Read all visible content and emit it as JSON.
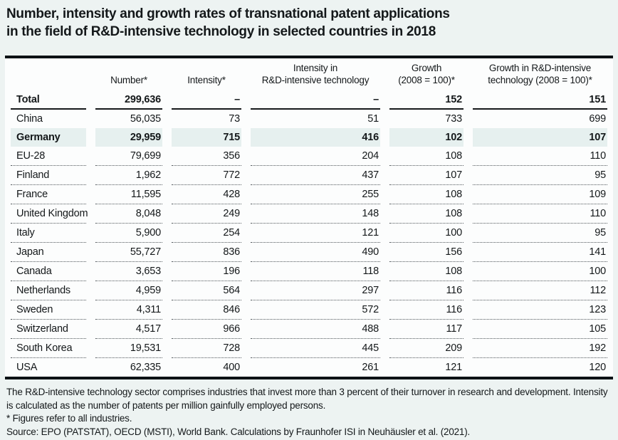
{
  "page": {
    "title_line1": "Number, intensity and growth rates of transnational patent applications",
    "title_line2": "in the field of R&D-intensive technology in selected countries in 2018"
  },
  "table": {
    "header": {
      "number": "Number*",
      "intensity": "Intensity*",
      "intensity_rd_line1": "Intensity in",
      "intensity_rd_line2": "R&D-intensive technology",
      "growth_line1": "Growth",
      "growth_line2": "(2008 = 100)*",
      "growth_rd_line1": "Growth in R&D-intensive",
      "growth_rd_line2": "technology (2008 = 100)*"
    }
  },
  "chart_data": {
    "type": "table",
    "title": "Number, intensity and growth rates of transnational patent applications in the field of R&D-intensive technology in selected countries in 2018",
    "columns": [
      "",
      "Number*",
      "Intensity*",
      "Intensity in R&D-intensive technology",
      "Growth (2008 = 100)*",
      "Growth in R&D-intensive technology (2008 = 100)*"
    ],
    "rows": [
      {
        "name": "Total",
        "values": [
          "299,636",
          "–",
          "–",
          "152",
          "151"
        ]
      },
      {
        "name": "China",
        "values": [
          "56,035",
          "73",
          "51",
          "733",
          "699"
        ]
      },
      {
        "name": "Germany",
        "values": [
          "29,959",
          "715",
          "416",
          "102",
          "107"
        ]
      },
      {
        "name": "EU-28",
        "values": [
          "79,699",
          "356",
          "204",
          "108",
          "110"
        ]
      },
      {
        "name": "Finland",
        "values": [
          "1,962",
          "772",
          "437",
          "107",
          "95"
        ]
      },
      {
        "name": "France",
        "values": [
          "11,595",
          "428",
          "255",
          "108",
          "109"
        ]
      },
      {
        "name": "United Kingdom",
        "values": [
          "8,048",
          "249",
          "148",
          "108",
          "110"
        ]
      },
      {
        "name": "Italy",
        "values": [
          "5,900",
          "254",
          "121",
          "100",
          "95"
        ]
      },
      {
        "name": "Japan",
        "values": [
          "55,727",
          "836",
          "490",
          "156",
          "141"
        ]
      },
      {
        "name": "Canada",
        "values": [
          "3,653",
          "196",
          "118",
          "108",
          "100"
        ]
      },
      {
        "name": "Netherlands",
        "values": [
          "4,959",
          "564",
          "297",
          "116",
          "112"
        ]
      },
      {
        "name": "Sweden",
        "values": [
          "4,311",
          "846",
          "572",
          "116",
          "123"
        ]
      },
      {
        "name": "Switzerland",
        "values": [
          "4,517",
          "966",
          "488",
          "117",
          "105"
        ]
      },
      {
        "name": "South Korea",
        "values": [
          "19,531",
          "728",
          "445",
          "209",
          "192"
        ]
      },
      {
        "name": "USA",
        "values": [
          "62,335",
          "400",
          "261",
          "121",
          "120"
        ]
      }
    ],
    "highlighted_row": "Germany"
  },
  "notes": {
    "definition": "The R&D-intensive technology sector comprises industries that invest more than 3 percent of their turnover in research and development. Intensity is calculated as the number of patents per million gainfully employed persons.",
    "asterisk": "* Figures refer to all industries.",
    "source": "Source: EPO (PATSTAT), OECD (MSTI), World Bank. Calculations by Fraunhofer ISI in Neuhäusler et al. (2021)."
  },
  "colors": {
    "page_background": "#edf3f2",
    "table_background": "#fcfdfd",
    "highlight_row": "#e6f0ef",
    "rule": "#0d1215",
    "text": "#14181a"
  }
}
